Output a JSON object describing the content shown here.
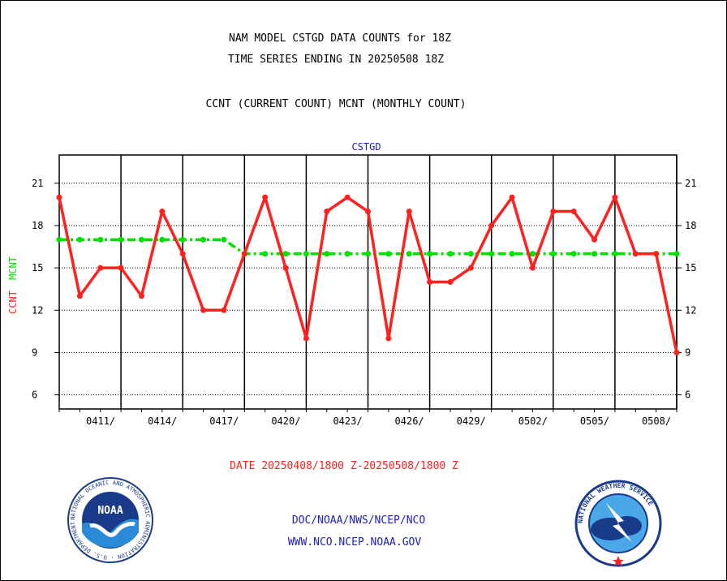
{
  "header": {
    "title_line1": "NAM MODEL CSTGD DATA COUNTS for 18Z",
    "title_line2": "TIME SERIES ENDING IN 20250508 18Z",
    "subtitle": "CCNT (CURRENT COUNT) MCNT (MONTHLY COUNT)"
  },
  "footer": {
    "date_range": "DATE 20250408/1800 Z-20250508/1800 Z",
    "org_line": "DOC/NOAA/NWS/NCEP/NCO",
    "url_line": "WWW.NCO.NCEP.NOAA.GOV",
    "noaa_logo_text": "NOAA",
    "noaa_ring_text": "NATIONAL OCEANIC AND ATMOSPHERIC ADMINISTRATION · U.S. DEPARTMENT OF COMMERCE",
    "nws_ring_text": "NATIONAL WEATHER SERVICE"
  },
  "chart_data": {
    "type": "line",
    "panel_label": "CSTGD",
    "ylabel_ccnt": "CCNT",
    "ylabel_mcnt": "MCNT",
    "ylim": [
      5,
      23
    ],
    "yticks": [
      6,
      9,
      12,
      15,
      18,
      21
    ],
    "grid": true,
    "x_tick_labels": [
      "0411/",
      "0414/",
      "0417/",
      "0420/",
      "0423/",
      "0426/",
      "0429/",
      "0502/",
      "0505/",
      "0508/"
    ],
    "x_tick_days": [
      3,
      6,
      9,
      12,
      15,
      18,
      21,
      24,
      27,
      30
    ],
    "x_dates": [
      "0408",
      "0409",
      "0410",
      "0411",
      "0412",
      "0413",
      "0414",
      "0415",
      "0416",
      "0417",
      "0418",
      "0419",
      "0420",
      "0421",
      "0422",
      "0423",
      "0424",
      "0425",
      "0426",
      "0427",
      "0428",
      "0429",
      "0430",
      "0501",
      "0502",
      "0503",
      "0504",
      "0505",
      "0506",
      "0507",
      "0508"
    ],
    "colors": {
      "ccnt": "#ff2020",
      "mcnt": "#00e000",
      "label": "#2020c0"
    },
    "series": [
      {
        "key": "ccnt",
        "values": [
          20,
          13,
          15,
          15,
          13,
          19,
          16,
          12,
          12,
          16,
          20,
          15,
          10,
          19,
          20,
          19,
          10,
          19,
          14,
          14,
          15,
          18,
          20,
          15,
          19,
          19,
          17,
          20,
          16,
          16,
          9
        ]
      },
      {
        "key": "mcnt",
        "values": [
          17,
          17,
          17,
          17,
          17,
          17,
          17,
          17,
          17,
          16,
          16,
          16,
          16,
          16,
          16,
          16,
          16,
          16,
          16,
          16,
          16,
          16,
          16,
          16,
          16,
          16,
          16,
          16,
          16,
          16,
          16
        ]
      }
    ]
  }
}
